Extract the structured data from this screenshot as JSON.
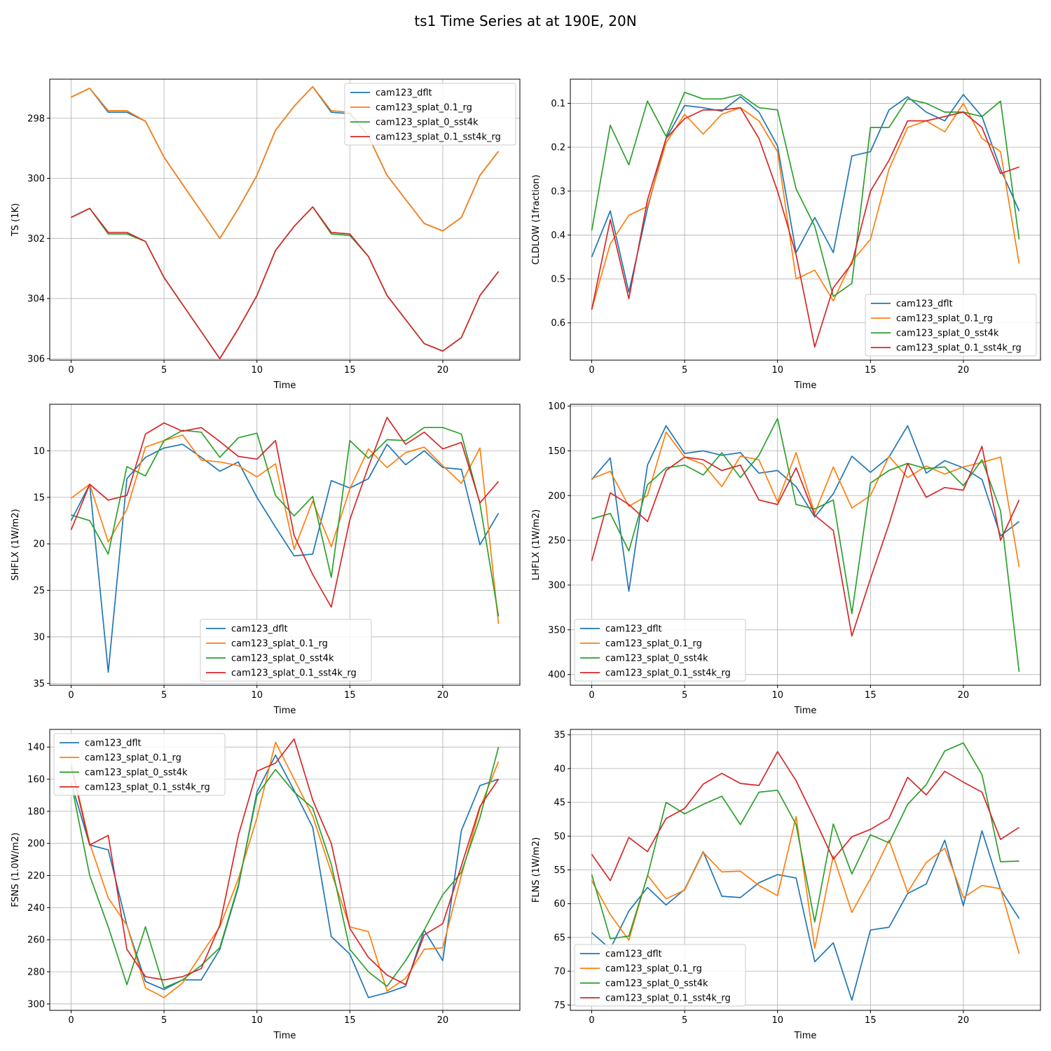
{
  "figure": {
    "title": "ts1 Time Series at at 190E, 20N"
  },
  "colors": {
    "cam123_dflt": "#1f77b4",
    "cam123_splat_0.1_rg": "#ff7f0e",
    "cam123_splat_0_sst4k": "#2ca02c",
    "cam123_splat_0.1_sst4k_rg": "#d62728"
  },
  "chart_data": [
    {
      "type": "line",
      "title": "",
      "xlabel": "Time",
      "ylabel": "TS (1K)",
      "x": [
        0,
        1,
        2,
        3,
        4,
        5,
        6,
        7,
        8,
        9,
        10,
        11,
        12,
        13,
        14,
        15,
        16,
        17,
        18,
        19,
        20,
        21,
        22,
        23
      ],
      "xticks": [
        0,
        5,
        10,
        15,
        20
      ],
      "xlim": [
        -1.15,
        24.15
      ],
      "yticks": [
        298,
        300,
        302,
        304,
        306
      ],
      "ylim": [
        306.05,
        296.7
      ],
      "legend": "top-right",
      "series": [
        {
          "name": "cam123_dflt",
          "values": [
            297.3,
            297.0,
            297.8,
            297.8,
            298.1,
            299.3,
            300.2,
            301.1,
            302.0,
            301.0,
            299.9,
            298.4,
            297.6,
            296.95,
            297.8,
            297.85,
            298.6,
            299.9,
            300.7,
            301.5,
            301.75,
            301.3,
            299.9,
            299.1
          ]
        },
        {
          "name": "cam123_splat_0.1_rg",
          "values": [
            297.3,
            297.0,
            297.75,
            297.75,
            298.1,
            299.3,
            300.2,
            301.1,
            302.0,
            301.0,
            299.9,
            298.4,
            297.6,
            296.95,
            297.75,
            297.8,
            298.6,
            299.9,
            300.7,
            301.5,
            301.75,
            301.3,
            299.9,
            299.1
          ]
        },
        {
          "name": "cam123_splat_0_sst4k",
          "values": [
            301.3,
            301.0,
            301.85,
            301.85,
            302.1,
            303.3,
            304.2,
            305.1,
            306.0,
            305.0,
            303.9,
            302.4,
            301.6,
            300.95,
            301.85,
            301.9,
            302.6,
            303.9,
            304.7,
            305.5,
            305.75,
            305.3,
            303.9,
            303.1
          ]
        },
        {
          "name": "cam123_splat_0.1_sst4k_rg",
          "values": [
            301.3,
            301.0,
            301.8,
            301.8,
            302.1,
            303.3,
            304.2,
            305.1,
            306.0,
            305.0,
            303.9,
            302.4,
            301.6,
            300.95,
            301.8,
            301.85,
            302.6,
            303.9,
            304.7,
            305.5,
            305.75,
            305.3,
            303.9,
            303.1
          ]
        }
      ]
    },
    {
      "type": "line",
      "title": "",
      "xlabel": "Time",
      "ylabel": "CLDLOW (1fraction)",
      "x": [
        0,
        1,
        2,
        3,
        4,
        5,
        6,
        7,
        8,
        9,
        10,
        11,
        12,
        13,
        14,
        15,
        16,
        17,
        18,
        19,
        20,
        21,
        22,
        23
      ],
      "xticks": [
        0,
        5,
        10,
        15,
        20
      ],
      "xlim": [
        -1.15,
        24.15
      ],
      "yticks": [
        0.1,
        0.2,
        0.3,
        0.4,
        0.5,
        0.6
      ],
      "ylim": [
        0.685,
        0.045
      ],
      "legend": "bottom-right",
      "series": [
        {
          "name": "cam123_dflt",
          "values": [
            0.45,
            0.345,
            0.53,
            0.34,
            0.18,
            0.105,
            0.11,
            0.118,
            0.085,
            0.12,
            0.197,
            0.44,
            0.36,
            0.44,
            0.22,
            0.21,
            0.115,
            0.085,
            0.12,
            0.14,
            0.08,
            0.13,
            0.25,
            0.345
          ]
        },
        {
          "name": "cam123_splat_0.1_rg",
          "values": [
            0.57,
            0.42,
            0.355,
            0.335,
            0.19,
            0.125,
            0.17,
            0.125,
            0.11,
            0.14,
            0.21,
            0.5,
            0.48,
            0.55,
            0.46,
            0.41,
            0.25,
            0.155,
            0.14,
            0.165,
            0.1,
            0.18,
            0.21,
            0.465
          ]
        },
        {
          "name": "cam123_splat_0_sst4k",
          "values": [
            0.39,
            0.15,
            0.24,
            0.095,
            0.175,
            0.075,
            0.09,
            0.09,
            0.08,
            0.11,
            0.115,
            0.295,
            0.38,
            0.54,
            0.51,
            0.155,
            0.155,
            0.09,
            0.1,
            0.12,
            0.12,
            0.13,
            0.095,
            0.41
          ]
        },
        {
          "name": "cam123_splat_0.1_sst4k_rg",
          "values": [
            0.57,
            0.365,
            0.545,
            0.32,
            0.18,
            0.135,
            0.115,
            0.115,
            0.11,
            0.18,
            0.3,
            0.445,
            0.655,
            0.52,
            0.465,
            0.3,
            0.23,
            0.14,
            0.14,
            0.13,
            0.12,
            0.155,
            0.26,
            0.245
          ]
        }
      ]
    },
    {
      "type": "line",
      "title": "",
      "xlabel": "Time",
      "ylabel": "SHFLX (1W/m2)",
      "x": [
        0,
        1,
        2,
        3,
        4,
        5,
        6,
        7,
        8,
        9,
        10,
        11,
        12,
        13,
        14,
        15,
        16,
        17,
        18,
        19,
        20,
        21,
        22,
        23
      ],
      "xticks": [
        0,
        5,
        10,
        15,
        20
      ],
      "xlim": [
        -1.15,
        24.15
      ],
      "yticks": [
        10,
        15,
        20,
        25,
        30,
        35
      ],
      "ylim": [
        35.2,
        5.0
      ],
      "legend": "bottom-center",
      "series": [
        {
          "name": "cam123_dflt",
          "values": [
            17.5,
            13.6,
            33.8,
            13.0,
            10.7,
            9.7,
            9.3,
            10.7,
            12.2,
            11.2,
            15.0,
            18.2,
            21.3,
            21.1,
            13.2,
            14.0,
            13.0,
            9.3,
            11.5,
            10.0,
            11.8,
            12.0,
            20.1,
            16.7
          ]
        },
        {
          "name": "cam123_splat_0.1_rg",
          "values": [
            15.1,
            13.6,
            19.8,
            16.3,
            9.6,
            8.9,
            8.3,
            11.0,
            11.2,
            11.6,
            12.8,
            11.4,
            20.6,
            15.4,
            20.3,
            14.1,
            9.8,
            11.8,
            10.2,
            9.6,
            11.6,
            13.5,
            9.7,
            28.6
          ]
        },
        {
          "name": "cam123_splat_0_sst4k",
          "values": [
            16.9,
            17.5,
            21.1,
            11.7,
            12.7,
            8.9,
            7.8,
            8.0,
            10.7,
            8.6,
            8.1,
            14.8,
            17.0,
            14.9,
            23.6,
            8.9,
            10.8,
            8.8,
            8.9,
            7.5,
            7.5,
            8.2,
            15.7,
            27.8
          ]
        },
        {
          "name": "cam123_splat_0.1_sst4k_rg",
          "values": [
            18.5,
            13.6,
            15.3,
            14.8,
            8.2,
            7.0,
            7.9,
            7.5,
            9.0,
            10.6,
            10.9,
            8.9,
            19.1,
            23.3,
            26.8,
            17.4,
            11.7,
            6.4,
            9.3,
            8.0,
            9.8,
            9.1,
            15.6,
            13.3
          ]
        }
      ]
    },
    {
      "type": "line",
      "title": "",
      "xlabel": "Time",
      "ylabel": "LHFLX (1W/m2)",
      "x": [
        0,
        1,
        2,
        3,
        4,
        5,
        6,
        7,
        8,
        9,
        10,
        11,
        12,
        13,
        14,
        15,
        16,
        17,
        18,
        19,
        20,
        21,
        22,
        23
      ],
      "xticks": [
        0,
        5,
        10,
        15,
        20
      ],
      "xlim": [
        -1.15,
        24.15
      ],
      "yticks": [
        100,
        150,
        200,
        250,
        300,
        350,
        400
      ],
      "ylim": [
        412,
        98
      ],
      "legend": "bottom-left",
      "series": [
        {
          "name": "cam123_dflt",
          "values": [
            182,
            158,
            307,
            166,
            122,
            153,
            150,
            155,
            152,
            175,
            172,
            190,
            224,
            198,
            156,
            174,
            157,
            122,
            175,
            161,
            169,
            182,
            245,
            229
          ]
        },
        {
          "name": "cam123_splat_0.1_rg",
          "values": [
            181,
            173,
            212,
            200,
            129,
            157,
            165,
            190,
            156,
            160,
            207,
            152,
            220,
            168,
            214,
            200,
            156,
            180,
            167,
            176,
            168,
            163,
            157,
            280
          ]
        },
        {
          "name": "cam123_splat_0_sst4k",
          "values": [
            226,
            220,
            262,
            188,
            169,
            166,
            177,
            152,
            180,
            155,
            114,
            210,
            215,
            205,
            332,
            186,
            172,
            164,
            170,
            168,
            189,
            160,
            217,
            397
          ]
        },
        {
          "name": "cam123_splat_0.1_sst4k_rg",
          "values": [
            273,
            197,
            210,
            229,
            172,
            157,
            160,
            172,
            166,
            205,
            210,
            169,
            222,
            239,
            357,
            293,
            232,
            164,
            202,
            191,
            194,
            145,
            250,
            205
          ]
        }
      ]
    },
    {
      "type": "line",
      "title": "",
      "xlabel": "Time",
      "ylabel": "FSNS (1.0W/m2)",
      "x": [
        0,
        1,
        2,
        3,
        4,
        5,
        6,
        7,
        8,
        9,
        10,
        11,
        12,
        13,
        14,
        15,
        16,
        17,
        18,
        19,
        20,
        21,
        22,
        23
      ],
      "xticks": [
        0,
        5,
        10,
        15,
        20
      ],
      "xlim": [
        -1.15,
        24.15
      ],
      "yticks": [
        140,
        160,
        180,
        200,
        220,
        240,
        260,
        280,
        300
      ],
      "ylim": [
        304,
        129
      ],
      "legend": "top-left",
      "series": [
        {
          "name": "cam123_dflt",
          "values": [
            162,
            201,
            204,
            251,
            286,
            291,
            285,
            285,
            266,
            227,
            168,
            145,
            167,
            190,
            258,
            269,
            296,
            293,
            289,
            254,
            273,
            192,
            164,
            160
          ]
        },
        {
          "name": "cam123_splat_0.1_rg",
          "values": [
            150,
            200,
            234,
            251,
            290,
            296,
            287,
            269,
            252,
            222,
            184,
            137,
            160,
            183,
            218,
            252,
            255,
            292,
            284,
            266,
            265,
            220,
            178,
            149
          ]
        },
        {
          "name": "cam123_splat_0_sst4k",
          "values": [
            162,
            220,
            252,
            288,
            252,
            290,
            285,
            276,
            265,
            226,
            170,
            154,
            168,
            178,
            213,
            266,
            280,
            289,
            273,
            254,
            232,
            218,
            184,
            140
          ]
        },
        {
          "name": "cam123_splat_0.1_sst4k_rg",
          "values": [
            152,
            201,
            195,
            266,
            283,
            285,
            283,
            278,
            251,
            195,
            155,
            150,
            135,
            173,
            200,
            253,
            271,
            282,
            288,
            257,
            250,
            214,
            177,
            160
          ]
        }
      ]
    },
    {
      "type": "line",
      "title": "",
      "xlabel": "Time",
      "ylabel": "FLNS (1W/m2)",
      "x": [
        0,
        1,
        2,
        3,
        4,
        5,
        6,
        7,
        8,
        9,
        10,
        11,
        12,
        13,
        14,
        15,
        16,
        17,
        18,
        19,
        20,
        21,
        22,
        23
      ],
      "xticks": [
        0,
        5,
        10,
        15,
        20
      ],
      "xlim": [
        -1.15,
        24.15
      ],
      "yticks": [
        35,
        40,
        45,
        50,
        55,
        60,
        65,
        70,
        75
      ],
      "ylim": [
        75.8,
        34.2
      ],
      "legend": "bottom-left",
      "series": [
        {
          "name": "cam123_dflt",
          "values": [
            64.3,
            66.7,
            61.1,
            57.6,
            60.2,
            57.9,
            52.3,
            58.9,
            59.1,
            56.9,
            55.7,
            56.2,
            68.6,
            65.8,
            74.3,
            63.9,
            63.5,
            58.5,
            57.1,
            50.6,
            60.3,
            49.2,
            57.9,
            62.2
          ]
        },
        {
          "name": "cam123_splat_0.1_rg",
          "values": [
            56.6,
            61.6,
            65.4,
            55.8,
            59.3,
            58.0,
            52.4,
            55.3,
            55.2,
            57.3,
            58.8,
            47.1,
            66.6,
            52.9,
            61.3,
            56.3,
            50.6,
            58.3,
            53.9,
            51.8,
            59.1,
            57.3,
            57.8,
            67.4
          ]
        },
        {
          "name": "cam123_splat_0_sst4k",
          "values": [
            55.7,
            65.2,
            64.8,
            55.9,
            45.0,
            46.7,
            45.3,
            44.1,
            48.3,
            43.5,
            43.2,
            48.3,
            62.7,
            48.2,
            55.6,
            49.8,
            51.0,
            45.3,
            42.4,
            37.4,
            36.2,
            40.9,
            53.8,
            53.7
          ]
        },
        {
          "name": "cam123_splat_0.1_sst4k_rg",
          "values": [
            52.7,
            56.6,
            50.2,
            52.3,
            47.4,
            45.9,
            42.3,
            40.7,
            42.2,
            42.5,
            37.5,
            41.8,
            47.5,
            53.4,
            50.1,
            49.0,
            47.4,
            41.3,
            43.9,
            40.4,
            42.0,
            43.5,
            50.5,
            48.7
          ]
        }
      ]
    }
  ]
}
